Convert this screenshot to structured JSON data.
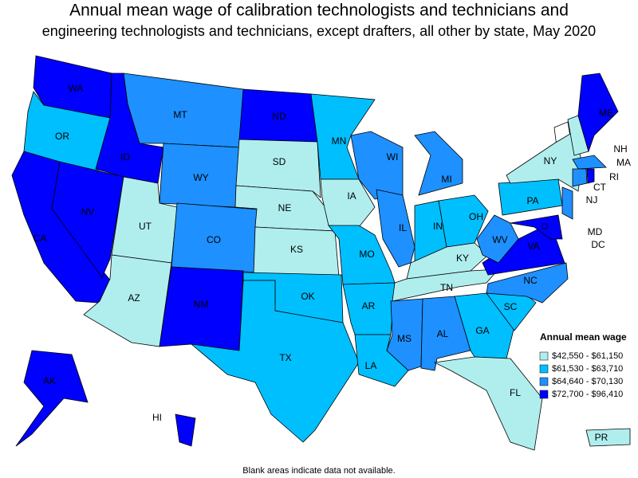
{
  "title_line1": "Annual mean wage of calibration technologists and technicians and",
  "title_line2": "engineering technologists and technicians, except drafters, all other by state, May 2020",
  "legend": {
    "title": "Annual mean wage",
    "entries": [
      {
        "label": "$42,550 - $61,150",
        "color": "#b0eeee"
      },
      {
        "label": "$61,530 - $63,710",
        "color": "#00bfff"
      },
      {
        "label": "$64,640 - $70,130",
        "color": "#1e90ff"
      },
      {
        "label": "$72,700 - $96,410",
        "color": "#0000ff"
      }
    ]
  },
  "states": [
    {
      "label": "WA",
      "color": "#0000ff"
    },
    {
      "label": "OR",
      "color": "#00bfff"
    },
    {
      "label": "CA",
      "color": "#0000ff"
    },
    {
      "label": "NV",
      "color": "#0000ff"
    },
    {
      "label": "ID",
      "color": "#0000ff"
    },
    {
      "label": "MT",
      "color": "#1e90ff"
    },
    {
      "label": "WY",
      "color": "#1e90ff"
    },
    {
      "label": "UT",
      "color": "#b0eeee"
    },
    {
      "label": "AZ",
      "color": "#b0eeee"
    },
    {
      "label": "CO",
      "color": "#1e90ff"
    },
    {
      "label": "NM",
      "color": "#0000ff"
    },
    {
      "label": "ND",
      "color": "#0000ff"
    },
    {
      "label": "SD",
      "color": "#b0eeee"
    },
    {
      "label": "NE",
      "color": "#b0eeee"
    },
    {
      "label": "KS",
      "color": "#b0eeee"
    },
    {
      "label": "OK",
      "color": "#00bfff"
    },
    {
      "label": "TX",
      "color": "#00bfff"
    },
    {
      "label": "MN",
      "color": "#00bfff"
    },
    {
      "label": "IA",
      "color": "#b0eeee"
    },
    {
      "label": "MO",
      "color": "#00bfff"
    },
    {
      "label": "AR",
      "color": "#00bfff"
    },
    {
      "label": "LA",
      "color": "#00bfff"
    },
    {
      "label": "WI",
      "color": "#1e90ff"
    },
    {
      "label": "IL",
      "color": "#1e90ff"
    },
    {
      "label": "MI",
      "color": "#1e90ff"
    },
    {
      "label": "IN",
      "color": "#00bfff"
    },
    {
      "label": "OH",
      "color": "#00bfff"
    },
    {
      "label": "KY",
      "color": "#b0eeee"
    },
    {
      "label": "TN",
      "color": "#b0eeee"
    },
    {
      "label": "MS",
      "color": "#1e90ff"
    },
    {
      "label": "AL",
      "color": "#1e90ff"
    },
    {
      "label": "GA",
      "color": "#00bfff"
    },
    {
      "label": "FL",
      "color": "#b0eeee"
    },
    {
      "label": "SC",
      "color": "#00bfff"
    },
    {
      "label": "NC",
      "color": "#1e90ff"
    },
    {
      "label": "VA",
      "color": "#0000ff"
    },
    {
      "label": "WV",
      "color": "#1e90ff"
    },
    {
      "label": "PA",
      "color": "#00bfff"
    },
    {
      "label": "NY",
      "color": "#b0eeee"
    },
    {
      "label": "NH",
      "color": "#b0eeee"
    },
    {
      "label": "ME",
      "color": "#0000ff"
    },
    {
      "label": "MA",
      "color": "#1e90ff"
    },
    {
      "label": "CT",
      "color": "#1e90ff"
    },
    {
      "label": "RI",
      "color": "#0000ff"
    },
    {
      "label": "NJ",
      "color": "#1e90ff"
    },
    {
      "label": "MD",
      "color": "#0000ff"
    },
    {
      "label": "DC",
      "color": "#0000ff"
    },
    {
      "label": "AK",
      "color": "#0000ff"
    },
    {
      "label": "HI",
      "color": "#0000ff"
    },
    {
      "label": "PR",
      "color": "#b0eeee"
    }
  ],
  "footnote": "Blank areas indicate data not available."
}
